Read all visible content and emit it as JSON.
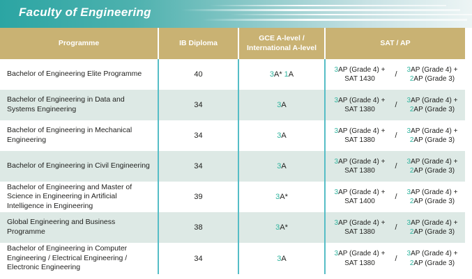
{
  "banner": {
    "title": "Faculty of Engineering"
  },
  "colors": {
    "banner_teal": "#2ba5a3",
    "header_tan": "#c9b273",
    "row_shade": "#dde9e5",
    "accent_teal": "#2db39d",
    "divider_teal": "#55bdc6"
  },
  "table": {
    "headers": {
      "programme": "Programme",
      "ib": "IB Diploma",
      "gce_line1": "GCE A-level /",
      "gce_line2": "International A-level",
      "sat": "SAT / AP"
    },
    "slash": "/",
    "rows": [
      {
        "programme": "Bachelor of Engineering Elite Programme",
        "ib": "40",
        "gce": [
          [
            "3",
            true
          ],
          [
            "A* ",
            false
          ],
          [
            "1",
            true
          ],
          [
            "A",
            false
          ]
        ],
        "sat_left": [
          [
            [
              "3",
              true
            ],
            [
              "AP (Grade 4) +",
              false
            ]
          ],
          [
            [
              "SAT 1430",
              false
            ]
          ]
        ],
        "sat_right": [
          [
            [
              "3",
              true
            ],
            [
              "AP (Grade 4) +",
              false
            ]
          ],
          [
            [
              "2",
              true
            ],
            [
              "AP (Grade 3)",
              false
            ]
          ]
        ]
      },
      {
        "programme": "Bachelor of Engineering in Data and Systems Engineering",
        "ib": "34",
        "gce": [
          [
            "3",
            true
          ],
          [
            "A",
            false
          ]
        ],
        "sat_left": [
          [
            [
              "3",
              true
            ],
            [
              "AP (Grade 4) +",
              false
            ]
          ],
          [
            [
              "SAT 1380",
              false
            ]
          ]
        ],
        "sat_right": [
          [
            [
              "3",
              true
            ],
            [
              "AP (Grade 4) +",
              false
            ]
          ],
          [
            [
              "2",
              true
            ],
            [
              "AP (Grade 3)",
              false
            ]
          ]
        ]
      },
      {
        "programme": "Bachelor of Engineering in Mechanical Engineering",
        "ib": "34",
        "gce": [
          [
            "3",
            true
          ],
          [
            "A",
            false
          ]
        ],
        "sat_left": [
          [
            [
              "3",
              true
            ],
            [
              "AP (Grade 4) +",
              false
            ]
          ],
          [
            [
              "SAT 1380",
              false
            ]
          ]
        ],
        "sat_right": [
          [
            [
              "3",
              true
            ],
            [
              "AP (Grade 4) +",
              false
            ]
          ],
          [
            [
              "2",
              true
            ],
            [
              "AP (Grade 3)",
              false
            ]
          ]
        ]
      },
      {
        "programme": "Bachelor of Engineering in Civil Engineering",
        "ib": "34",
        "gce": [
          [
            "3",
            true
          ],
          [
            "A",
            false
          ]
        ],
        "sat_left": [
          [
            [
              "3",
              true
            ],
            [
              "AP (Grade 4) +",
              false
            ]
          ],
          [
            [
              "SAT 1380",
              false
            ]
          ]
        ],
        "sat_right": [
          [
            [
              "3",
              true
            ],
            [
              "AP (Grade 4) +",
              false
            ]
          ],
          [
            [
              "2",
              true
            ],
            [
              "AP (Grade 3)",
              false
            ]
          ]
        ]
      },
      {
        "programme": "Bachelor of Engineering and Master of Science in Engineering in Artificial Intelligence in Engineering",
        "ib": "39",
        "gce": [
          [
            "3",
            true
          ],
          [
            "A*",
            false
          ]
        ],
        "sat_left": [
          [
            [
              "3",
              true
            ],
            [
              "AP (Grade 4) +",
              false
            ]
          ],
          [
            [
              "SAT 1400",
              false
            ]
          ]
        ],
        "sat_right": [
          [
            [
              "3",
              true
            ],
            [
              "AP (Grade 4) +",
              false
            ]
          ],
          [
            [
              "2",
              true
            ],
            [
              "AP (Grade 3)",
              false
            ]
          ]
        ]
      },
      {
        "programme": "Global Engineering and Business Programme",
        "ib": "38",
        "gce": [
          [
            "3",
            true
          ],
          [
            "A*",
            false
          ]
        ],
        "sat_left": [
          [
            [
              "3",
              true
            ],
            [
              "AP (Grade 4) +",
              false
            ]
          ],
          [
            [
              "SAT 1380",
              false
            ]
          ]
        ],
        "sat_right": [
          [
            [
              "3",
              true
            ],
            [
              "AP (Grade 4) +",
              false
            ]
          ],
          [
            [
              "2",
              true
            ],
            [
              "AP (Grade 3)",
              false
            ]
          ]
        ]
      },
      {
        "programme": "Bachelor of Engineering in Computer Engineering / Electrical Engineering / Electronic Engineering",
        "ib": "34",
        "gce": [
          [
            "3",
            true
          ],
          [
            "A",
            false
          ]
        ],
        "sat_left": [
          [
            [
              "3",
              true
            ],
            [
              "AP (Grade 4) +",
              false
            ]
          ],
          [
            [
              "SAT 1380",
              false
            ]
          ]
        ],
        "sat_right": [
          [
            [
              "3",
              true
            ],
            [
              "AP (Grade 4) +",
              false
            ]
          ],
          [
            [
              "2",
              true
            ],
            [
              "AP (Grade 3)",
              false
            ]
          ]
        ]
      }
    ]
  }
}
